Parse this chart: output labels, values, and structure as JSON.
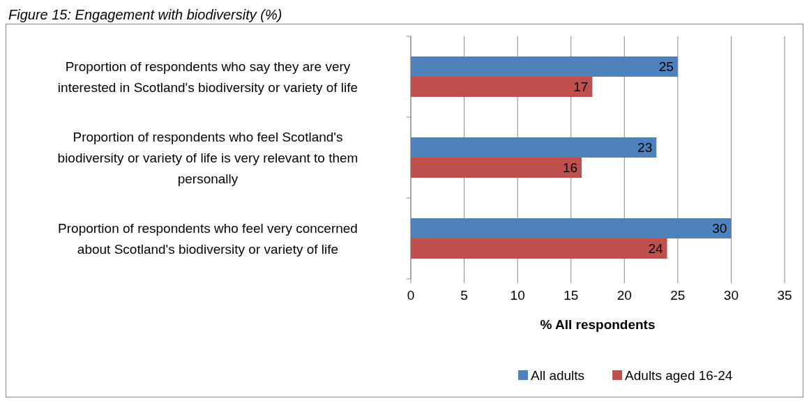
{
  "chart_data": {
    "type": "bar",
    "orientation": "horizontal",
    "title": "Figure 15: Engagement with biodiversity (%)",
    "categories": [
      "Proportion of respondents who say they are very interested  in Scotland's biodiversity or variety of life",
      "Proportion of respondents who feel Scotland's biodiversity or variety of life is very relevant to them personally",
      "Proportion of respondents who feel very concerned about Scotland's biodiversity or variety of life"
    ],
    "series": [
      {
        "name": "All adults",
        "color": "#4f81bd",
        "values": [
          25,
          23,
          30
        ]
      },
      {
        "name": "Adults aged 16-24",
        "color": "#c0504d",
        "values": [
          17,
          16,
          24
        ]
      }
    ],
    "xlim": [
      0,
      35
    ],
    "xticks": [
      0,
      5,
      10,
      15,
      20,
      25,
      30,
      35
    ],
    "xlabel": "% All respondents",
    "grid": "x",
    "legend": "bottom",
    "data_labels": true
  }
}
